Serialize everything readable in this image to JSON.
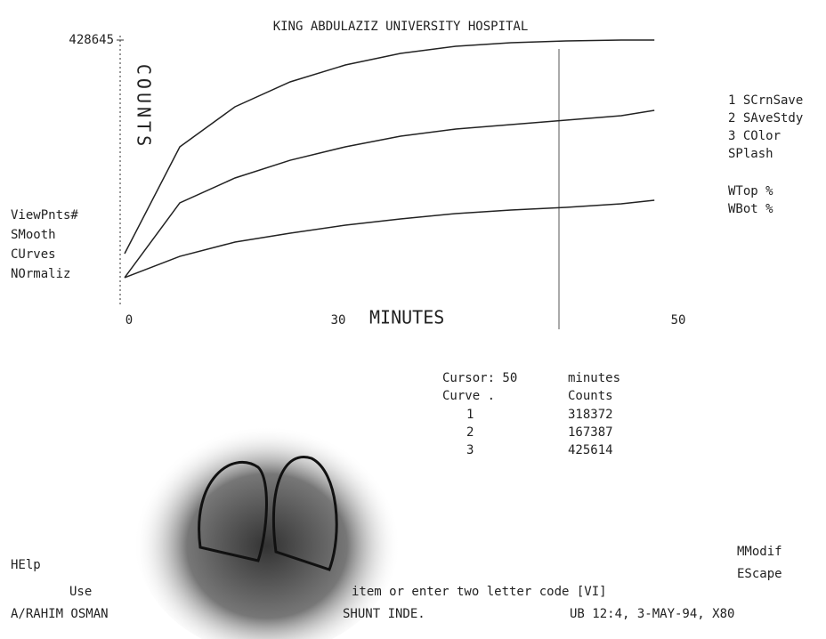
{
  "chart_data": {
    "type": "line",
    "title": "KING ABDULAZIZ UNIVERSITY HOSPITAL",
    "y_label": "COUNTS",
    "x_label": "MINUTES",
    "x": [
      0,
      5,
      10,
      15,
      20,
      25,
      30,
      35,
      40,
      45,
      48
    ],
    "series": [
      {
        "name": "1",
        "color": "#222222",
        "values": [
          85700,
          257200,
          321500,
          361500,
          388600,
          407200,
          418600,
          424400,
          427200,
          428600,
          428600
        ]
      },
      {
        "name": "2",
        "color": "#222222",
        "values": [
          47200,
          167200,
          207200,
          235700,
          257200,
          274300,
          285700,
          292900,
          300000,
          307200,
          315800
        ]
      },
      {
        "name": "3",
        "color": "#222222",
        "values": [
          47200,
          81400,
          104300,
          118600,
          131400,
          141500,
          150000,
          155700,
          160000,
          165700,
          171500
        ]
      }
    ],
    "xlim": [
      0,
      50
    ],
    "ylim": [
      0,
      428645
    ],
    "yticks": [
      428645
    ]
  },
  "x_axis_labels": [
    "0",
    "30",
    "50"
  ],
  "left_menu": [
    "ViewPnts#",
    "SMooth",
    "CUrves",
    "NOrmaliz"
  ],
  "right_menu": [
    "1 SCrnSave",
    "2 SAveStdy",
    "3 COlor",
    "SPlash",
    "WTop %",
    "WBot %"
  ],
  "cursor_panel": {
    "cursor": "Cursor: 50",
    "unit": "minutes",
    "col1": "Curve .",
    "col2": "Counts",
    "rows": [
      [
        "1",
        "318372"
      ],
      [
        "2",
        "167387"
      ],
      [
        "3",
        "425614"
      ]
    ]
  },
  "footer": {
    "help": "HElp",
    "modify": "MModif",
    "escape": "EScape",
    "prompt_start": "Use",
    "prompt_end": "item or enter two letter code [VI]",
    "user": "A/RAHIM OSMAN",
    "study": "SHUNT INDE.",
    "status": "UB  12:4,  3-MAY-94,  X80"
  }
}
